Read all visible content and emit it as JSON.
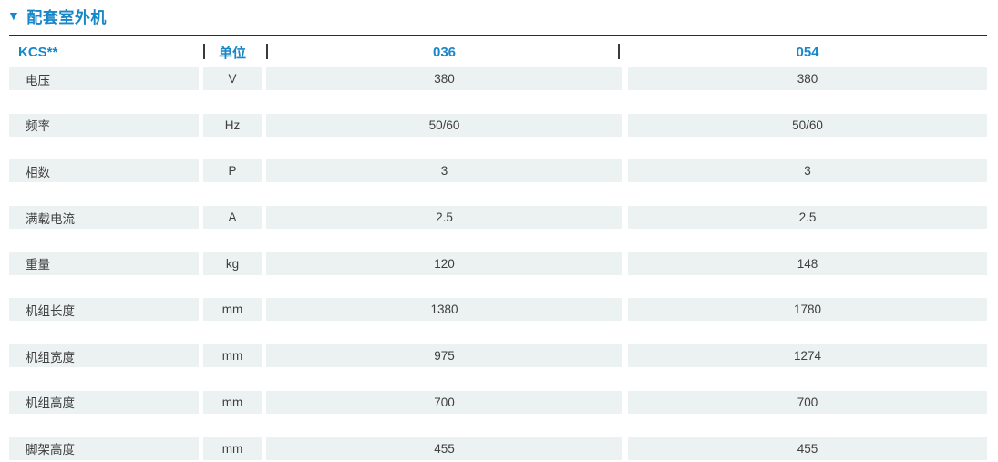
{
  "colors": {
    "accent_blue": "#1787c9",
    "row_background": "#ebf2f1",
    "body_text": "#3e3e3e",
    "top_rule": "#2d2d2d"
  },
  "section": {
    "marker": "▼",
    "title": "配套室外机"
  },
  "table": {
    "header": {
      "model_label": "KCS**",
      "unit_label": "单位",
      "separator": "|",
      "columns": [
        "036",
        "054"
      ]
    },
    "rows": [
      {
        "label": "电压",
        "unit": "V",
        "v036": "380",
        "v054": "380"
      },
      {
        "label": "频率",
        "unit": "Hz",
        "v036": "50/60",
        "v054": "50/60"
      },
      {
        "label": "相数",
        "unit": "P",
        "v036": "3",
        "v054": "3"
      },
      {
        "label": "满载电流",
        "unit": "A",
        "v036": "2.5",
        "v054": "2.5"
      },
      {
        "label": "重量",
        "unit": "kg",
        "v036": "120",
        "v054": "148"
      },
      {
        "label": "机组长度",
        "unit": "mm",
        "v036": "1380",
        "v054": "1780"
      },
      {
        "label": "机组宽度",
        "unit": "mm",
        "v036": "975",
        "v054": "1274"
      },
      {
        "label": "机组高度",
        "unit": "mm",
        "v036": "700",
        "v054": "700"
      },
      {
        "label": "脚架高度",
        "unit": "mm",
        "v036": "455",
        "v054": "455"
      }
    ]
  }
}
